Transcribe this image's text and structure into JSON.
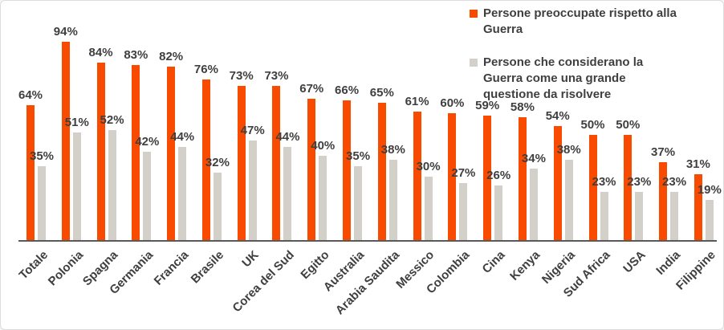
{
  "chart_data": {
    "type": "bar",
    "categories": [
      "Totale",
      "Polonia",
      "Spagna",
      "Germania",
      "Francia",
      "Brasile",
      "UK",
      "Corea del Sud",
      "Egitto",
      "Australia",
      "Arabia Saudita",
      "Messico",
      "Colombia",
      "Cina",
      "Kenya",
      "Nigeria",
      "Sud Africa",
      "USA",
      "India",
      "Filippine"
    ],
    "series": [
      {
        "name": "Persone preoccupate rispetto alla Guerra",
        "color": "#f94b00",
        "values": [
          64,
          94,
          84,
          83,
          82,
          76,
          73,
          73,
          67,
          66,
          65,
          61,
          60,
          59,
          58,
          54,
          50,
          50,
          37,
          31
        ]
      },
      {
        "name": "Persone che considerano la Guerra come una grande questione da risolvere",
        "color": "#d2d0c8",
        "values": [
          35,
          51,
          52,
          42,
          44,
          32,
          47,
          44,
          40,
          35,
          38,
          30,
          27,
          26,
          34,
          38,
          23,
          23,
          23,
          19
        ]
      }
    ],
    "value_suffix": "%",
    "title": "",
    "xlabel": "",
    "ylabel": "",
    "ylim": [
      0,
      100
    ],
    "grid": false,
    "data_labels": true,
    "legend_position": "top-right"
  },
  "legend": {
    "items": [
      {
        "label": "Persone preoccupate rispetto alla\nGuerra",
        "color": "#f94b00"
      },
      {
        "label": "Persone che considerano la\nGuerra come una grande\nquestione da risolvere",
        "color": "#d2d0c8"
      }
    ]
  },
  "colors": {
    "axis_line": "#595959",
    "label_text": "#3f3f3f",
    "card_border": "#dcdcdc",
    "background": "#ffffff"
  }
}
